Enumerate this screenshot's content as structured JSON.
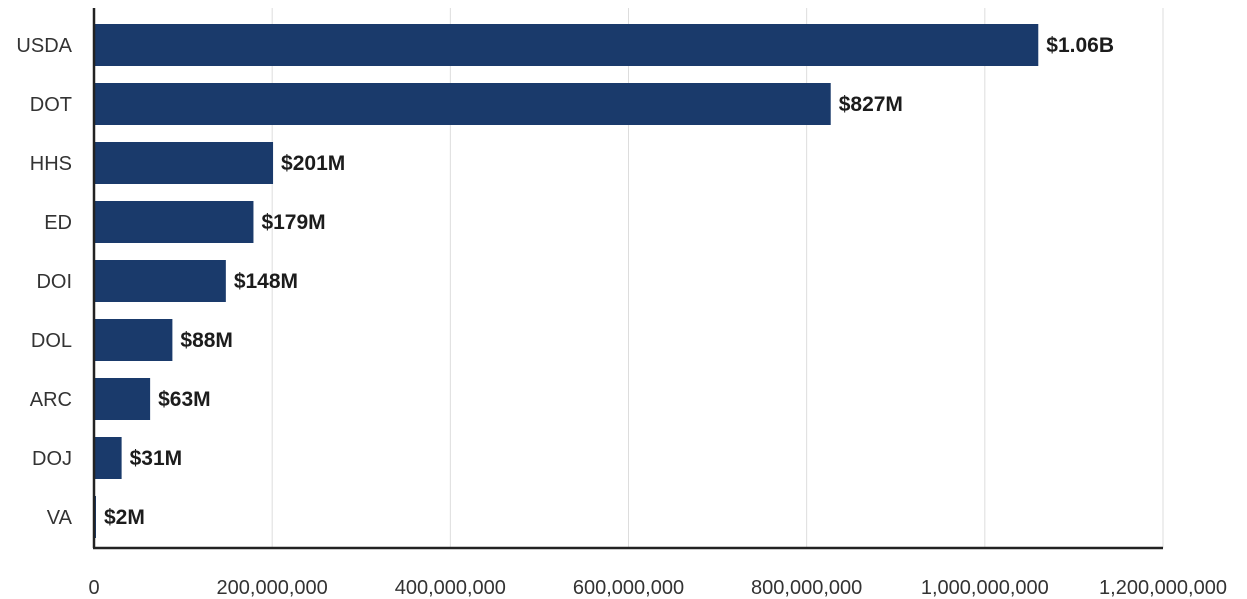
{
  "chart_data": {
    "type": "bar",
    "orientation": "horizontal",
    "categories": [
      "USDA",
      "DOT",
      "HHS",
      "ED",
      "DOI",
      "DOL",
      "ARC",
      "DOJ",
      "VA"
    ],
    "values": [
      1060000000,
      827000000,
      201000000,
      179000000,
      148000000,
      88000000,
      63000000,
      31000000,
      2000000
    ],
    "data_labels": [
      "$1.06B",
      "$827M",
      "$201M",
      "$179M",
      "$148M",
      "$88M",
      "$63M",
      "$31M",
      "$2M"
    ],
    "x_ticks": [
      0,
      200000000,
      400000000,
      600000000,
      800000000,
      1000000000,
      1200000000
    ],
    "x_tick_labels": [
      "0",
      "200,000,000",
      "400,000,000",
      "600,000,000",
      "800,000,000",
      "1,000,000,000",
      "1,200,000,000"
    ],
    "xlim": [
      0,
      1200000000
    ],
    "grid": true,
    "legend": "none",
    "bar_color": "#1a3a6b"
  }
}
